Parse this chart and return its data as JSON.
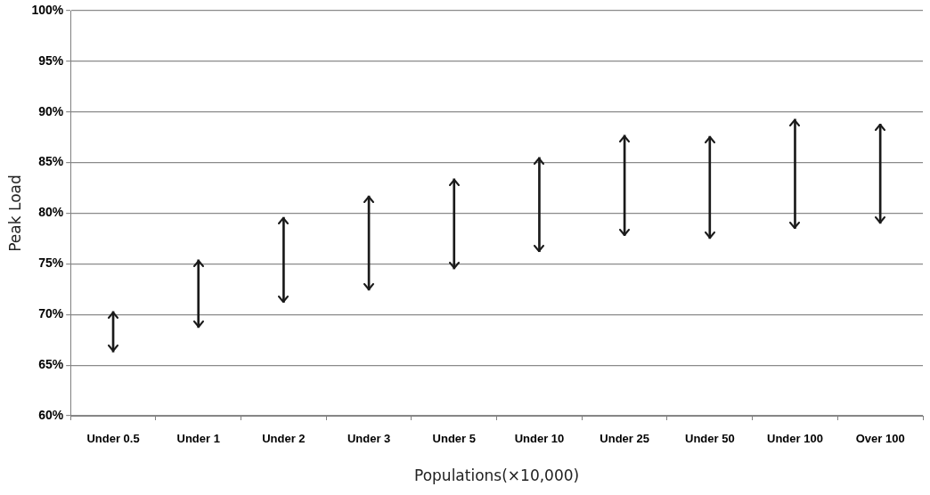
{
  "chart_data": {
    "type": "bar",
    "xlabel": "Populations(×10,000)",
    "ylabel": "Peak Load",
    "categories": [
      "Under 0.5",
      "Under 1",
      "Under 2",
      "Under 3",
      "Under 5",
      "Under 10",
      "Under 25",
      "Under 50",
      "Under 100",
      "Over 100"
    ],
    "base": [
      66.3,
      68.7,
      71.2,
      72.4,
      74.5,
      76.2,
      77.8,
      77.5,
      78.5,
      79.0
    ],
    "values": [
      4.0,
      6.7,
      8.4,
      9.3,
      8.9,
      9.3,
      9.9,
      10.1,
      10.8,
      9.8
    ],
    "color": "#1a1a1a",
    "ylim": [
      60,
      100
    ],
    "yticks": [
      {
        "value": 60,
        "label": "60%"
      },
      {
        "value": 65,
        "label": "65%"
      },
      {
        "value": 70,
        "label": "70%"
      },
      {
        "value": 75,
        "label": "75%"
      },
      {
        "value": 80,
        "label": "80%"
      },
      {
        "value": 85,
        "label": "85%"
      },
      {
        "value": 90,
        "label": "90%"
      },
      {
        "value": 95,
        "label": "95%"
      },
      {
        "value": 100,
        "label": "100%"
      }
    ],
    "grid": "y"
  }
}
